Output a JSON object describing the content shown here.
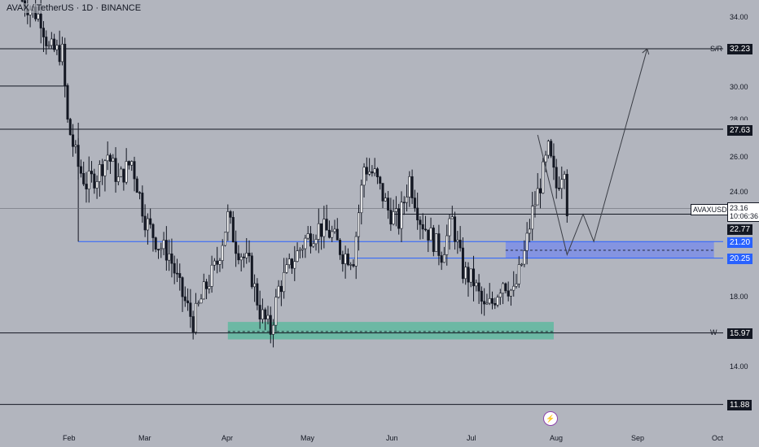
{
  "header": {
    "symbol_title": "AVAX / TetherUS · 1D · BINANCE"
  },
  "price_axis": {
    "ticks": [
      "34.00",
      "30.00",
      "26.00",
      "24.00",
      "18.00",
      "14.00"
    ],
    "tick_values": [
      34,
      30,
      26,
      24,
      18,
      14
    ],
    "partial_ticks": [
      "28.00",
      "20.00"
    ]
  },
  "levels": {
    "sr": {
      "tag": "S/R",
      "value": "32.23",
      "price": 32.23
    },
    "l2763": {
      "value": "27.63",
      "price": 27.63
    },
    "l2277": {
      "value": "22.77",
      "price": 22.77
    },
    "l2120": {
      "value": "21.20",
      "price": 21.2
    },
    "l2025": {
      "value": "20.25",
      "price": 20.25
    },
    "w": {
      "tag": "W",
      "value": "15.97",
      "price": 15.97
    },
    "l1188": {
      "value": "11.88",
      "price": 11.88
    }
  },
  "last_price": {
    "symbol": "AVAXUSDT",
    "value": "23.16",
    "countdown": "10:06:36"
  },
  "time_axis": {
    "labels": [
      "Feb",
      "Mar",
      "Apr",
      "May",
      "Jun",
      "Jul",
      "Aug",
      "Sep",
      "Oct"
    ]
  },
  "chart_data": {
    "type": "candlestick",
    "symbol": "AVAX / TetherUS",
    "interval": "1D",
    "exchange": "BINANCE",
    "y_range": [
      11,
      35.5
    ],
    "x_range": [
      "2024-01-15",
      "2024-10-01"
    ],
    "horizontal_levels": [
      32.23,
      27.63,
      22.77,
      21.2,
      20.25,
      15.97,
      11.88
    ],
    "demand_zone": {
      "from": "2024-04-01",
      "to": "2024-08-01",
      "low": 15.6,
      "high": 16.6
    },
    "resistance_zone": {
      "from": "2024-07-14",
      "to": "2024-09-30",
      "low": 20.25,
      "high": 21.2
    },
    "projection_path": [
      [
        "2024-07-26",
        27.3
      ],
      [
        "2024-08-06",
        20.45
      ],
      [
        "2024-08-12",
        22.77
      ],
      [
        "2024-08-16",
        21.2
      ],
      [
        "2024-09-05",
        32.23
      ]
    ],
    "price_path": [
      [
        "2024-01-15",
        35.0
      ],
      [
        "2024-01-22",
        34.0
      ],
      [
        "2024-01-25",
        32.2
      ],
      [
        "2024-01-30",
        32.0
      ],
      [
        "2024-02-01",
        28.0
      ],
      [
        "2024-02-05",
        25.5
      ],
      [
        "2024-02-08",
        24.5
      ],
      [
        "2024-02-12",
        25.0
      ],
      [
        "2024-02-16",
        26.2
      ],
      [
        "2024-02-20",
        24.7
      ],
      [
        "2024-02-25",
        25.8
      ],
      [
        "2024-03-01",
        22.5
      ],
      [
        "2024-03-06",
        21.0
      ],
      [
        "2024-03-10",
        20.5
      ],
      [
        "2024-03-14",
        18.5
      ],
      [
        "2024-03-19",
        16.6
      ],
      [
        "2024-03-23",
        18.3
      ],
      [
        "2024-03-28",
        20.0
      ],
      [
        "2024-04-01",
        22.6
      ],
      [
        "2024-04-04",
        21.0
      ],
      [
        "2024-04-09",
        19.8
      ],
      [
        "2024-04-13",
        17.2
      ],
      [
        "2024-04-17",
        16.1
      ],
      [
        "2024-04-20",
        18.5
      ],
      [
        "2024-04-25",
        20.0
      ],
      [
        "2024-04-30",
        21.3
      ],
      [
        "2024-05-05",
        22.0
      ],
      [
        "2024-05-10",
        21.6
      ],
      [
        "2024-05-14",
        20.5
      ],
      [
        "2024-05-18",
        20.3
      ],
      [
        "2024-05-22",
        25.5
      ],
      [
        "2024-05-26",
        25.0
      ],
      [
        "2024-05-31",
        23.0
      ],
      [
        "2024-06-04",
        22.3
      ],
      [
        "2024-06-08",
        24.8
      ],
      [
        "2024-06-12",
        22.5
      ],
      [
        "2024-06-16",
        21.5
      ],
      [
        "2024-06-20",
        20.5
      ],
      [
        "2024-06-24",
        22.4
      ],
      [
        "2024-06-28",
        19.5
      ],
      [
        "2024-07-02",
        18.9
      ],
      [
        "2024-07-06",
        17.3
      ],
      [
        "2024-07-09",
        17.7
      ],
      [
        "2024-07-13",
        19.0
      ],
      [
        "2024-07-17",
        18.2
      ],
      [
        "2024-07-21",
        20.5
      ],
      [
        "2024-07-24",
        22.9
      ],
      [
        "2024-07-27",
        24.5
      ],
      [
        "2024-07-30",
        26.4
      ],
      [
        "2024-08-02",
        24.3
      ],
      [
        "2024-08-05",
        25.7
      ],
      [
        "2024-08-06",
        23.16
      ]
    ]
  },
  "colors": {
    "background": "#b2b5be",
    "candle": "#ffffff",
    "candle_border": "#131722",
    "level_line": "#131722",
    "blue_line": "#2962ff",
    "green_zone": "#5fb8a0",
    "blue_zone": "#7b8ee8"
  }
}
